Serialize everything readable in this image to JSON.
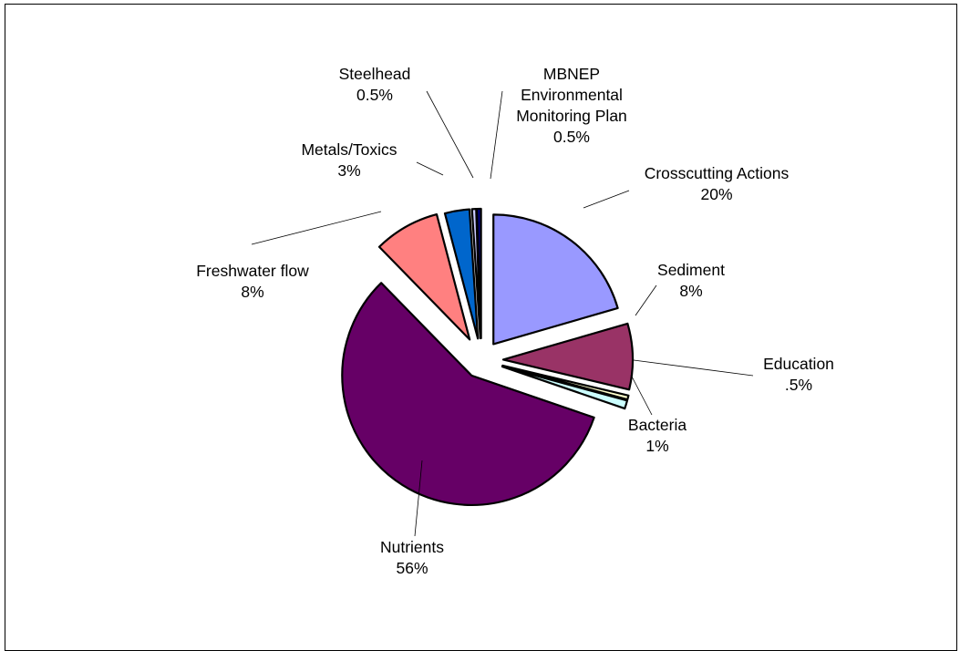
{
  "chart_data": {
    "type": "pie",
    "exploded": true,
    "slices": [
      {
        "name": "Crosscutting Actions",
        "value": 20,
        "label_value": "20%",
        "color": "#9999ff"
      },
      {
        "name": "Sediment",
        "value": 8,
        "label_value": "8%",
        "color": "#993366"
      },
      {
        "name": "Education",
        "value": 0.5,
        "label_value": ".5%",
        "color": "#ffffcc"
      },
      {
        "name": "Bacteria",
        "value": 1,
        "label_value": "1%",
        "color": "#ccffff"
      },
      {
        "name": "Nutrients",
        "value": 56,
        "label_value": "56%",
        "color": "#660066"
      },
      {
        "name": "Freshwater flow",
        "value": 8,
        "label_value": "8%",
        "color": "#ff8080"
      },
      {
        "name": "Metals/Toxics",
        "value": 3,
        "label_value": "3%",
        "color": "#0066cc"
      },
      {
        "name": "Steelhead",
        "value": 0.5,
        "label_value": "0.5%",
        "color": "#ccccff"
      },
      {
        "name": "MBNEP Environmental Monitoring Plan",
        "value": 0.5,
        "label_value": "0.5%",
        "color": "#000080"
      }
    ]
  }
}
